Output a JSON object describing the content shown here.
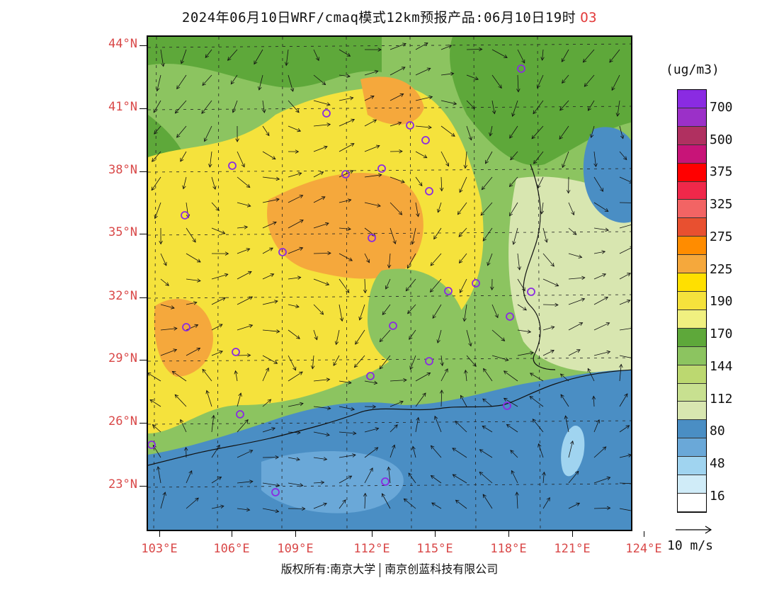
{
  "title": {
    "text": "2024年06月10日WRF/cmaq模式12km预报产品:06月10日19时",
    "species": "O3"
  },
  "map": {
    "lat_labels": [
      "44°N",
      "41°N",
      "38°N",
      "35°N",
      "32°N",
      "29°N",
      "26°N",
      "23°N"
    ],
    "lon_labels": [
      "103°E",
      "106°E",
      "109°E",
      "112°E",
      "115°E",
      "118°E",
      "121°E",
      "124°E"
    ],
    "colors": {
      "sea": "#4a8ec4",
      "sea_light": "#6aa8d8",
      "land_green": "#8cc460",
      "land_dark_green": "#5ea83a",
      "yellow": "#f5e23c",
      "orange": "#f5a83c",
      "pale": "#d8e6b0",
      "site_marker": "#8a2be2",
      "label": "#d94848"
    }
  },
  "legend": {
    "unit": "(ug/m3)",
    "levels": [
      "700",
      "500",
      "375",
      "325",
      "275",
      "225",
      "190",
      "170",
      "144",
      "112",
      "80",
      "48",
      "16"
    ],
    "colors": [
      "#8a2be2",
      "#9b30c8",
      "#b03060",
      "#c81478",
      "#ff0000",
      "#f0284a",
      "#f26464",
      "#e85030",
      "#ff8c00",
      "#f5a83c",
      "#ffe000",
      "#f5f060",
      "#f0f080",
      "#5ea83a",
      "#8cc460",
      "#bcd870",
      "#c8e090",
      "#d8e6b0",
      "#4a8ec4",
      "#6aa8d8",
      "#a0d4f0",
      "#d0ecf8",
      "#ffffff"
    ]
  },
  "wind_key": {
    "label": "10 m/s"
  },
  "copyright": {
    "left": "版权所有:南京大学",
    "right": "南京创蓝科技有限公司"
  }
}
